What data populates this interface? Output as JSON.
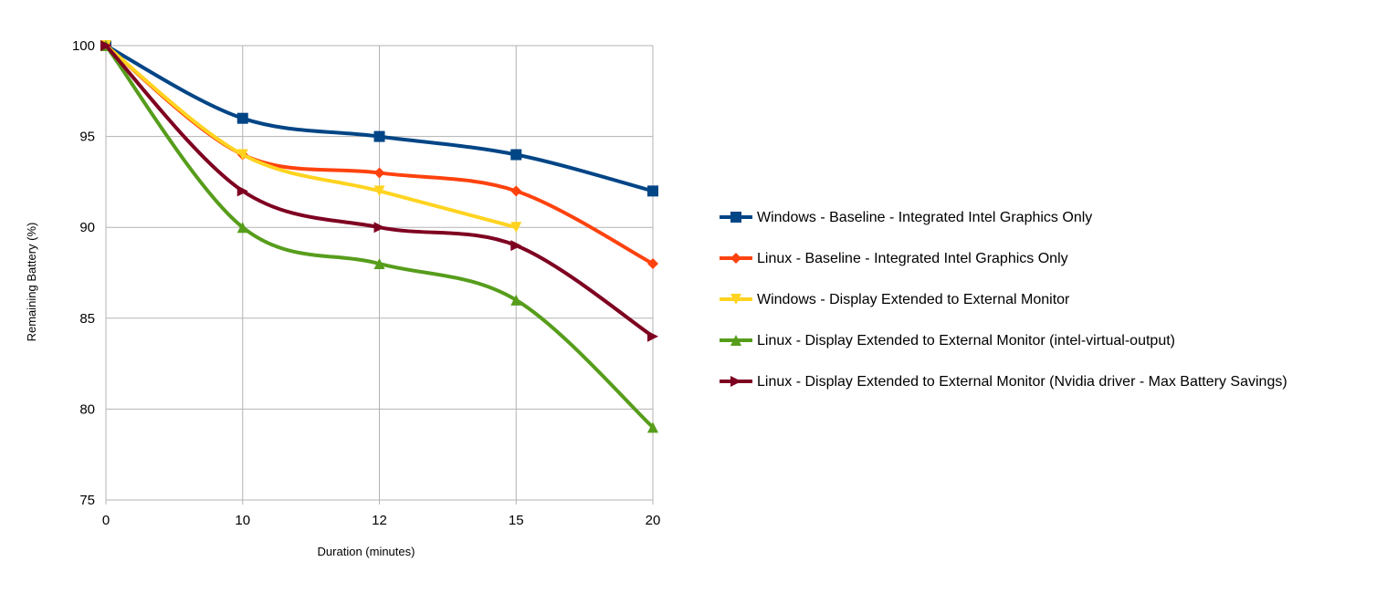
{
  "chart_data": {
    "type": "line",
    "x": [
      "0",
      "10",
      "12",
      "15",
      "20"
    ],
    "xlabel": "Duration (minutes)",
    "ylabel": "Remaining Battery (%)",
    "ylim": [
      75,
      100
    ],
    "yticks": [
      75,
      80,
      85,
      90,
      95,
      100
    ],
    "grid": true,
    "smooth": true,
    "legend_position": "right",
    "series": [
      {
        "name": "Windows - Baseline - Integrated Intel Graphics Only",
        "color": "#004586",
        "marker": "square",
        "values": [
          100,
          96,
          95,
          94,
          92
        ]
      },
      {
        "name": "Linux - Baseline - Integrated Intel Graphics Only",
        "color": "#ff420e",
        "marker": "diamond",
        "values": [
          100,
          94,
          93,
          92,
          88
        ]
      },
      {
        "name": "Windows - Display Extended to External Monitor",
        "color": "#ffd320",
        "marker": "triangle-down",
        "values": [
          100,
          94,
          92,
          90,
          null
        ]
      },
      {
        "name": "Linux - Display Extended to External Monitor (intel-virtual-output)",
        "color": "#579d1c",
        "marker": "triangle-up",
        "values": [
          100,
          90,
          88,
          86,
          79
        ]
      },
      {
        "name": "Linux - Display Extended to External Monitor (Nvidia driver - Max Battery Savings)",
        "color": "#7e0021",
        "marker": "triangle-right",
        "values": [
          100,
          92,
          90,
          89,
          84
        ]
      }
    ]
  }
}
